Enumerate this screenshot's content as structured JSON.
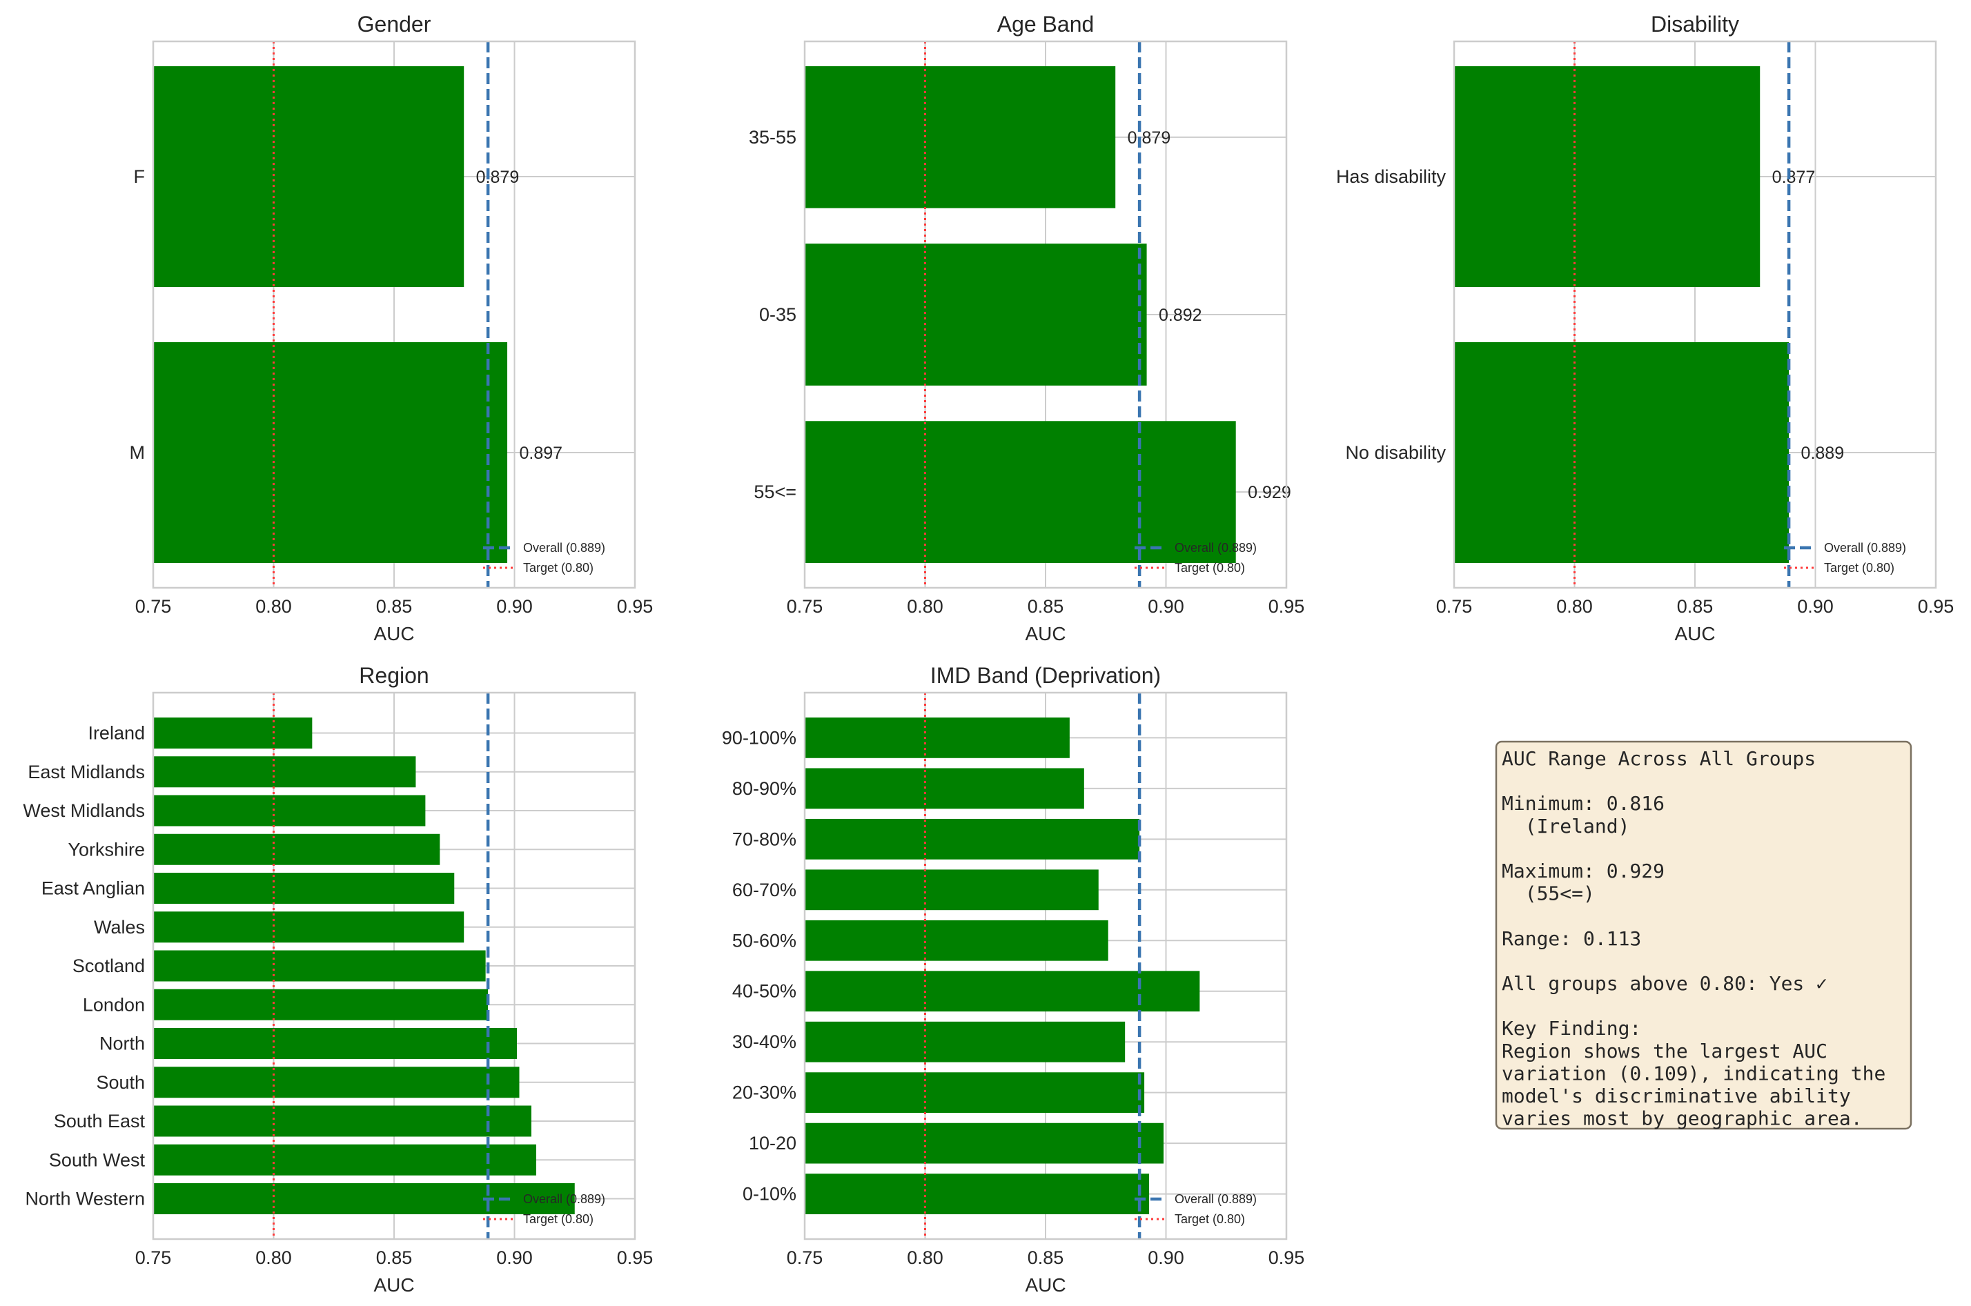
{
  "chart_data": [
    {
      "type": "bar",
      "orientation": "horizontal",
      "title": "Gender",
      "xlabel": "AUC",
      "xlim": [
        0.75,
        0.95
      ],
      "xticks": [
        "0.75",
        "0.80",
        "0.85",
        "0.90",
        "0.95"
      ],
      "categories": [
        "F",
        "M"
      ],
      "values": [
        0.879,
        0.897
      ],
      "value_labels": [
        "0.879",
        "0.897"
      ],
      "overall": 0.889,
      "target": 0.8,
      "legend": [
        "Overall (0.889)",
        "Target (0.80)"
      ],
      "legend_position": "lower right",
      "grid": true
    },
    {
      "type": "bar",
      "orientation": "horizontal",
      "title": "Age Band",
      "xlabel": "AUC",
      "xlim": [
        0.75,
        0.95
      ],
      "xticks": [
        "0.75",
        "0.80",
        "0.85",
        "0.90",
        "0.95"
      ],
      "categories": [
        "35-55",
        "0-35",
        "55<="
      ],
      "values": [
        0.879,
        0.892,
        0.929
      ],
      "value_labels": [
        "0.879",
        "0.892",
        "0.929"
      ],
      "overall": 0.889,
      "target": 0.8,
      "legend": [
        "Overall (0.889)",
        "Target (0.80)"
      ],
      "legend_position": "lower right",
      "grid": true
    },
    {
      "type": "bar",
      "orientation": "horizontal",
      "title": "Disability",
      "xlabel": "AUC",
      "xlim": [
        0.75,
        0.95
      ],
      "xticks": [
        "0.75",
        "0.80",
        "0.85",
        "0.90",
        "0.95"
      ],
      "categories": [
        "Has disability",
        "No disability"
      ],
      "values": [
        0.877,
        0.889
      ],
      "value_labels": [
        "0.877",
        "0.889"
      ],
      "overall": 0.889,
      "target": 0.8,
      "legend": [
        "Overall (0.889)",
        "Target (0.80)"
      ],
      "legend_position": "lower right",
      "grid": true
    },
    {
      "type": "bar",
      "orientation": "horizontal",
      "title": "Region",
      "xlabel": "AUC",
      "xlim": [
        0.75,
        0.95
      ],
      "xticks": [
        "0.75",
        "0.80",
        "0.85",
        "0.90",
        "0.95"
      ],
      "categories": [
        "Ireland",
        "East Midlands",
        "West Midlands",
        "Yorkshire",
        "East Anglian",
        "Wales",
        "Scotland",
        "London",
        "North",
        "South",
        "South East",
        "South West",
        "North Western"
      ],
      "values": [
        0.816,
        0.859,
        0.863,
        0.869,
        0.875,
        0.879,
        0.888,
        0.889,
        0.901,
        0.902,
        0.907,
        0.909,
        0.925
      ],
      "overall": 0.889,
      "target": 0.8,
      "legend": [
        "Overall (0.889)",
        "Target (0.80)"
      ],
      "legend_position": "lower right",
      "grid": true
    },
    {
      "type": "bar",
      "orientation": "horizontal",
      "title": "IMD Band (Deprivation)",
      "xlabel": "AUC",
      "xlim": [
        0.75,
        0.95
      ],
      "xticks": [
        "0.75",
        "0.80",
        "0.85",
        "0.90",
        "0.95"
      ],
      "categories": [
        "90-100%",
        "80-90%",
        "70-80%",
        "60-70%",
        "50-60%",
        "40-50%",
        "30-40%",
        "20-30%",
        "10-20",
        "0-10%"
      ],
      "values": [
        0.86,
        0.866,
        0.889,
        0.872,
        0.876,
        0.914,
        0.883,
        0.891,
        0.899,
        0.893
      ],
      "overall": 0.889,
      "target": 0.8,
      "legend": [
        "Overall (0.889)",
        "Target (0.80)"
      ],
      "legend_position": "lower right",
      "grid": true
    }
  ],
  "summary_box": {
    "lines": [
      "AUC Range Across All Groups",
      "",
      "Minimum: 0.816",
      "  (Ireland)",
      "",
      "Maximum: 0.929",
      "  (55<=)",
      "",
      "Range: 0.113",
      "",
      "All groups above 0.80: Yes ✓",
      "",
      "Key Finding:",
      "Region shows the largest AUC",
      "variation (0.109), indicating the",
      "model's discriminative ability",
      "varies most by geographic area."
    ]
  },
  "colors": {
    "bar": "#008000",
    "overall_line": "#3a75b0",
    "target_line": "#ff3b3b",
    "grid": "#cccccc",
    "box_fill": "#f8edd9",
    "box_edge": "#7a7060"
  }
}
